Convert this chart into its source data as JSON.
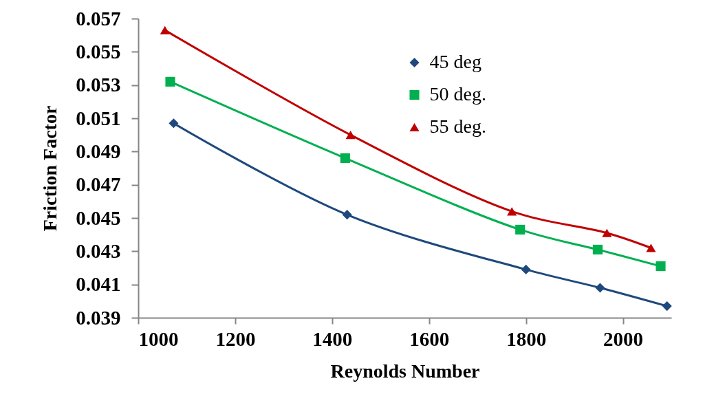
{
  "chart_data": {
    "type": "line",
    "xlabel": "Reynolds Number",
    "ylabel": "Friction Factor",
    "xlim": [
      1000,
      2100
    ],
    "xticks": [
      1000,
      1200,
      1400,
      1600,
      1800,
      2000
    ],
    "ylim": [
      0.039,
      0.057
    ],
    "yticks": [
      0.039,
      0.041,
      0.043,
      0.045,
      0.047,
      0.049,
      0.051,
      0.053,
      0.055,
      0.057
    ],
    "legend": "top",
    "series": [
      {
        "name": "45 deg",
        "color": "#1f497d",
        "marker": "diamond",
        "x": [
          1073,
          1431,
          1800,
          1953,
          2091
        ],
        "values": [
          0.0507,
          0.0452,
          0.0419,
          0.0408,
          0.0397
        ]
      },
      {
        "name": "50 deg.",
        "color": "#00b050",
        "marker": "square",
        "x": [
          1066,
          1427,
          1788,
          1948,
          2078
        ],
        "values": [
          0.0532,
          0.0486,
          0.0443,
          0.0431,
          0.0421
        ]
      },
      {
        "name": "55 deg.",
        "color": "#c00000",
        "marker": "triangle",
        "x": [
          1055,
          1438,
          1771,
          1967,
          2058
        ],
        "values": [
          0.0563,
          0.05,
          0.0454,
          0.0441,
          0.0432
        ]
      }
    ]
  }
}
